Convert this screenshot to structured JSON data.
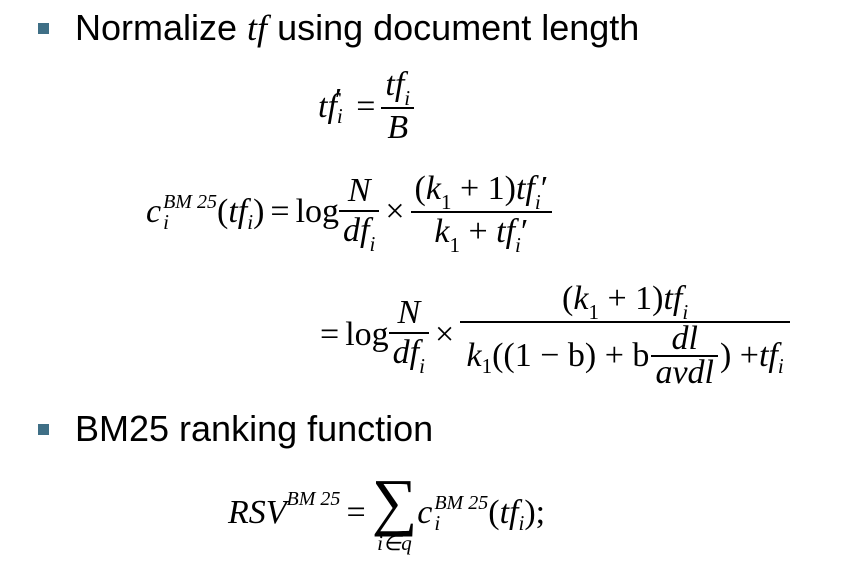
{
  "bullets": [
    {
      "text_before": "Normalize ",
      "text_italic": "tf",
      "text_after": " using document length"
    },
    {
      "text": "BM25 ranking function"
    }
  ],
  "colors": {
    "bullet_marker": "#3f6f86",
    "text": "#000000"
  },
  "math": {
    "tf": "tf",
    "i": "i",
    "prime": "′",
    "B": "B",
    "eq": "=",
    "c": "c",
    "bm25": "BM 25",
    "log": "log",
    "N": "N",
    "df": "df",
    "times": "×",
    "k": "k",
    "one": "1",
    "k1_plus_1_open": "(",
    "plus": "+",
    "close_paren": ")",
    "open_paren": "(",
    "one_minus_b": "((1 − b) + b",
    "dl": "dl",
    "avdl": "avdl",
    "close_plus_tf": ") + ",
    "rsv": "RSV",
    "sum": "∑",
    "sum_sub": "i∈q",
    "semicolon": ";"
  }
}
